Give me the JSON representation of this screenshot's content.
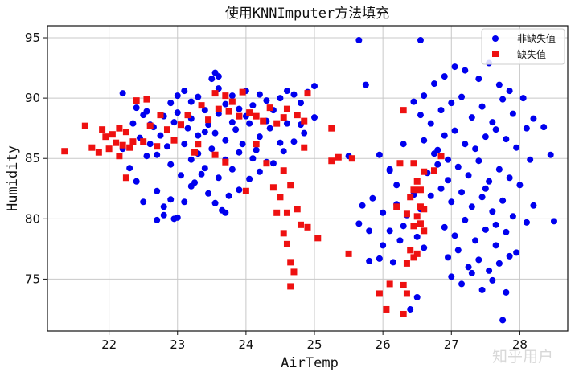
{
  "chart_data": {
    "type": "scatter",
    "title": "使用KNNImputer方法填充",
    "xlabel": "AirTemp",
    "ylabel": "Humidity",
    "xlim": [
      21.1,
      28.7
    ],
    "ylim": [
      70.7,
      96.0
    ],
    "xticks": [
      "22",
      "23",
      "24",
      "25",
      "26",
      "27",
      "28"
    ],
    "yticks": [
      "75",
      "80",
      "85",
      "90",
      "95"
    ],
    "grid": true,
    "legend_position": "top-right",
    "series": [
      {
        "name": "非缺失值",
        "color": "#0000ee",
        "marker": "circle",
        "points": [
          [
            22.2,
            90.4
          ],
          [
            22.4,
            89.2
          ],
          [
            22.5,
            88.6
          ],
          [
            22.6,
            87.8
          ],
          [
            22.8,
            88.5
          ],
          [
            22.9,
            89.6
          ],
          [
            23.0,
            90.2
          ],
          [
            23.1,
            90.6
          ],
          [
            23.2,
            89.7
          ],
          [
            23.3,
            90.1
          ],
          [
            23.4,
            89.0
          ],
          [
            23.5,
            91.6
          ],
          [
            23.6,
            90.8
          ],
          [
            23.7,
            89.5
          ],
          [
            23.8,
            90.2
          ],
          [
            23.9,
            89.1
          ],
          [
            24.0,
            90.6
          ],
          [
            24.1,
            89.4
          ],
          [
            24.2,
            90.3
          ],
          [
            24.3,
            89.8
          ],
          [
            24.4,
            89.0
          ],
          [
            24.5,
            90.0
          ],
          [
            24.6,
            90.6
          ],
          [
            24.7,
            90.3
          ],
          [
            24.8,
            89.6
          ],
          [
            24.9,
            90.5
          ],
          [
            25.0,
            91.0
          ],
          [
            23.55,
            92.1
          ],
          [
            23.6,
            91.8
          ],
          [
            22.95,
            88.0
          ],
          [
            23.15,
            87.5
          ],
          [
            23.3,
            86.9
          ],
          [
            23.45,
            87.8
          ],
          [
            23.55,
            87.1
          ],
          [
            23.7,
            86.5
          ],
          [
            23.85,
            87.4
          ],
          [
            24.05,
            87.9
          ],
          [
            24.2,
            86.8
          ],
          [
            24.35,
            87.5
          ],
          [
            24.5,
            86.3
          ],
          [
            23.1,
            86.2
          ],
          [
            23.3,
            85.4
          ],
          [
            23.5,
            85.8
          ],
          [
            23.7,
            84.9
          ],
          [
            23.9,
            85.5
          ],
          [
            24.1,
            85.0
          ],
          [
            24.3,
            84.7
          ],
          [
            22.6,
            86.2
          ],
          [
            22.7,
            85.3
          ],
          [
            22.9,
            84.5
          ],
          [
            23.05,
            83.6
          ],
          [
            23.2,
            84.9
          ],
          [
            23.4,
            84.2
          ],
          [
            23.6,
            83.4
          ],
          [
            23.8,
            84.1
          ],
          [
            22.2,
            85.8
          ],
          [
            22.3,
            84.2
          ],
          [
            22.4,
            83.1
          ],
          [
            22.5,
            81.4
          ],
          [
            22.7,
            82.3
          ],
          [
            22.8,
            81.0
          ],
          [
            22.95,
            80.0
          ],
          [
            23.1,
            81.4
          ],
          [
            23.2,
            82.7
          ],
          [
            23.35,
            83.7
          ],
          [
            22.7,
            79.9
          ],
          [
            22.8,
            80.3
          ],
          [
            22.9,
            81.6
          ],
          [
            23.0,
            80.1
          ],
          [
            23.65,
            80.7
          ],
          [
            23.75,
            81.9
          ],
          [
            23.9,
            82.4
          ],
          [
            24.05,
            83.3
          ],
          [
            24.2,
            83.9
          ],
          [
            24.4,
            84.6
          ],
          [
            24.55,
            85.6
          ],
          [
            24.7,
            86.4
          ],
          [
            24.85,
            87.1
          ],
          [
            25.0,
            88.4
          ],
          [
            23.25,
            83.0
          ],
          [
            23.45,
            82.1
          ],
          [
            23.55,
            81.3
          ],
          [
            23.7,
            80.5
          ],
          [
            22.55,
            88.9
          ],
          [
            22.65,
            87.6
          ],
          [
            22.75,
            86.9
          ],
          [
            22.85,
            86.0
          ],
          [
            23.0,
            88.8
          ],
          [
            23.2,
            88.3
          ],
          [
            23.4,
            87.2
          ],
          [
            23.6,
            88.7
          ],
          [
            23.8,
            88.0
          ],
          [
            24.0,
            88.5
          ],
          [
            24.3,
            88.1
          ],
          [
            24.6,
            87.9
          ],
          [
            24.8,
            87.8
          ],
          [
            22.35,
            87.9
          ],
          [
            22.45,
            86.7
          ],
          [
            22.55,
            85.2
          ],
          [
            23.95,
            86.2
          ],
          [
            24.15,
            85.7
          ],
          [
            25.65,
            94.8
          ],
          [
            26.55,
            94.8
          ],
          [
            25.75,
            91.1
          ],
          [
            25.5,
            85.2
          ],
          [
            25.95,
            85.3
          ],
          [
            26.1,
            84.1
          ],
          [
            25.8,
            79.0
          ],
          [
            25.7,
            81.1
          ],
          [
            25.85,
            81.7
          ],
          [
            25.95,
            76.7
          ],
          [
            25.8,
            76.5
          ],
          [
            25.65,
            79.6
          ],
          [
            26.0,
            77.8
          ],
          [
            26.15,
            76.4
          ],
          [
            26.25,
            78.2
          ],
          [
            26.4,
            72.5
          ],
          [
            26.5,
            73.5
          ],
          [
            26.35,
            80.3
          ],
          [
            26.2,
            82.8
          ],
          [
            26.1,
            84.0
          ],
          [
            26.3,
            86.2
          ],
          [
            26.45,
            89.7
          ],
          [
            26.6,
            90.2
          ],
          [
            26.75,
            91.2
          ],
          [
            26.9,
            91.8
          ],
          [
            27.05,
            92.6
          ],
          [
            27.2,
            92.3
          ],
          [
            27.4,
            91.6
          ],
          [
            27.55,
            92.9
          ],
          [
            27.7,
            91.1
          ],
          [
            27.85,
            90.6
          ],
          [
            28.05,
            90.0
          ],
          [
            28.2,
            88.3
          ],
          [
            28.35,
            87.6
          ],
          [
            28.45,
            85.3
          ],
          [
            28.5,
            79.8
          ],
          [
            26.55,
            88.6
          ],
          [
            26.7,
            87.9
          ],
          [
            26.85,
            89.0
          ],
          [
            27.0,
            89.6
          ],
          [
            27.15,
            90.1
          ],
          [
            27.3,
            88.4
          ],
          [
            27.45,
            89.3
          ],
          [
            27.6,
            88.0
          ],
          [
            27.75,
            89.9
          ],
          [
            27.9,
            88.7
          ],
          [
            28.1,
            87.5
          ],
          [
            26.6,
            86.5
          ],
          [
            26.75,
            85.4
          ],
          [
            26.9,
            86.9
          ],
          [
            27.05,
            87.3
          ],
          [
            27.2,
            86.2
          ],
          [
            27.35,
            85.8
          ],
          [
            27.5,
            86.8
          ],
          [
            27.65,
            87.4
          ],
          [
            27.8,
            86.6
          ],
          [
            27.95,
            85.9
          ],
          [
            28.15,
            84.9
          ],
          [
            26.65,
            83.8
          ],
          [
            26.8,
            84.5
          ],
          [
            26.95,
            83.2
          ],
          [
            27.1,
            84.3
          ],
          [
            27.25,
            83.6
          ],
          [
            27.4,
            84.8
          ],
          [
            27.55,
            83.1
          ],
          [
            27.7,
            84.1
          ],
          [
            27.85,
            83.4
          ],
          [
            28.0,
            82.8
          ],
          [
            28.2,
            81.1
          ],
          [
            26.7,
            81.9
          ],
          [
            26.85,
            82.5
          ],
          [
            27.0,
            81.4
          ],
          [
            27.15,
            82.2
          ],
          [
            27.3,
            81.0
          ],
          [
            27.45,
            81.8
          ],
          [
            27.6,
            80.6
          ],
          [
            27.75,
            81.5
          ],
          [
            27.9,
            80.2
          ],
          [
            28.1,
            79.7
          ],
          [
            26.9,
            79.3
          ],
          [
            27.05,
            78.6
          ],
          [
            27.2,
            79.9
          ],
          [
            27.35,
            78.2
          ],
          [
            27.5,
            79.1
          ],
          [
            27.65,
            77.8
          ],
          [
            27.8,
            78.9
          ],
          [
            27.95,
            77.2
          ],
          [
            26.95,
            76.8
          ],
          [
            27.1,
            77.4
          ],
          [
            27.25,
            76.0
          ],
          [
            27.4,
            76.6
          ],
          [
            27.55,
            75.7
          ],
          [
            27.7,
            76.3
          ],
          [
            27.85,
            76.9
          ],
          [
            27.0,
            75.2
          ],
          [
            27.15,
            74.6
          ],
          [
            27.3,
            75.5
          ],
          [
            27.45,
            74.1
          ],
          [
            27.6,
            74.9
          ],
          [
            27.8,
            73.9
          ],
          [
            27.75,
            71.6
          ],
          [
            26.8,
            85.7
          ],
          [
            26.95,
            84.9
          ],
          [
            27.5,
            82.5
          ],
          [
            27.65,
            79.5
          ],
          [
            26.5,
            78.5
          ],
          [
            26.6,
            77.6
          ],
          [
            26.3,
            79.4
          ],
          [
            26.45,
            82.0
          ],
          [
            26.55,
            80.8
          ],
          [
            26.2,
            81.2
          ],
          [
            26.0,
            80.5
          ],
          [
            26.1,
            79.0
          ]
        ]
      },
      {
        "name": "缺失值",
        "color": "#ee1111",
        "marker": "square",
        "points": [
          [
            21.35,
            85.6
          ],
          [
            21.65,
            87.7
          ],
          [
            21.75,
            85.9
          ],
          [
            21.85,
            85.5
          ],
          [
            21.9,
            87.4
          ],
          [
            21.95,
            86.8
          ],
          [
            22.0,
            85.8
          ],
          [
            22.05,
            87.0
          ],
          [
            22.1,
            86.3
          ],
          [
            22.15,
            87.5
          ],
          [
            22.2,
            86.1
          ],
          [
            22.25,
            87.2
          ],
          [
            22.3,
            85.9
          ],
          [
            22.35,
            86.4
          ],
          [
            22.15,
            85.2
          ],
          [
            22.25,
            83.4
          ],
          [
            22.4,
            89.8
          ],
          [
            22.5,
            86.4
          ],
          [
            22.55,
            89.9
          ],
          [
            22.6,
            87.7
          ],
          [
            22.7,
            86.0
          ],
          [
            22.75,
            88.6
          ],
          [
            22.85,
            87.4
          ],
          [
            22.95,
            86.5
          ],
          [
            23.05,
            87.8
          ],
          [
            23.15,
            88.6
          ],
          [
            23.25,
            85.5
          ],
          [
            23.3,
            86.2
          ],
          [
            23.35,
            89.4
          ],
          [
            23.45,
            88.2
          ],
          [
            23.55,
            90.4
          ],
          [
            23.6,
            89.1
          ],
          [
            23.7,
            90.2
          ],
          [
            23.75,
            88.9
          ],
          [
            23.8,
            89.7
          ],
          [
            23.9,
            88.5
          ],
          [
            23.95,
            90.5
          ],
          [
            24.05,
            88.8
          ],
          [
            24.15,
            88.5
          ],
          [
            24.25,
            88.1
          ],
          [
            24.35,
            89.2
          ],
          [
            24.45,
            87.9
          ],
          [
            24.55,
            88.4
          ],
          [
            24.6,
            89.1
          ],
          [
            24.75,
            88.6
          ],
          [
            24.85,
            88.1
          ],
          [
            24.9,
            90.4
          ],
          [
            23.55,
            85.3
          ],
          [
            23.7,
            84.7
          ],
          [
            24.0,
            82.3
          ],
          [
            24.15,
            86.2
          ],
          [
            24.3,
            84.6
          ],
          [
            24.4,
            82.6
          ],
          [
            24.45,
            80.5
          ],
          [
            24.5,
            81.8
          ],
          [
            24.6,
            80.5
          ],
          [
            24.65,
            82.8
          ],
          [
            24.75,
            80.8
          ],
          [
            24.8,
            79.5
          ],
          [
            24.85,
            85.9
          ],
          [
            24.9,
            79.3
          ],
          [
            24.55,
            84.0
          ],
          [
            24.6,
            77.9
          ],
          [
            24.55,
            78.8
          ],
          [
            24.65,
            76.4
          ],
          [
            24.7,
            75.6
          ],
          [
            24.65,
            74.4
          ],
          [
            25.05,
            78.4
          ],
          [
            25.25,
            87.5
          ],
          [
            25.25,
            84.8
          ],
          [
            25.35,
            85.1
          ],
          [
            25.55,
            85.0
          ],
          [
            25.5,
            77.1
          ],
          [
            25.95,
            73.8
          ],
          [
            26.05,
            72.5
          ],
          [
            26.1,
            74.6
          ],
          [
            26.3,
            72.1
          ],
          [
            26.3,
            74.5
          ],
          [
            26.35,
            73.8
          ],
          [
            26.35,
            76.3
          ],
          [
            26.4,
            77.4
          ],
          [
            26.45,
            76.8
          ],
          [
            26.5,
            77.1
          ],
          [
            26.45,
            79.4
          ],
          [
            26.5,
            80.2
          ],
          [
            26.55,
            79.6
          ],
          [
            26.55,
            81.0
          ],
          [
            26.4,
            81.8
          ],
          [
            26.45,
            82.4
          ],
          [
            26.5,
            83.1
          ],
          [
            26.55,
            82.4
          ],
          [
            26.6,
            83.9
          ],
          [
            26.45,
            84.6
          ],
          [
            26.25,
            84.6
          ],
          [
            26.2,
            81.0
          ],
          [
            26.35,
            80.4
          ],
          [
            26.6,
            79.0
          ],
          [
            26.6,
            80.8
          ],
          [
            26.75,
            84.0
          ],
          [
            26.85,
            85.2
          ],
          [
            26.3,
            89.0
          ]
        ]
      }
    ]
  },
  "watermark": "知乎用户"
}
